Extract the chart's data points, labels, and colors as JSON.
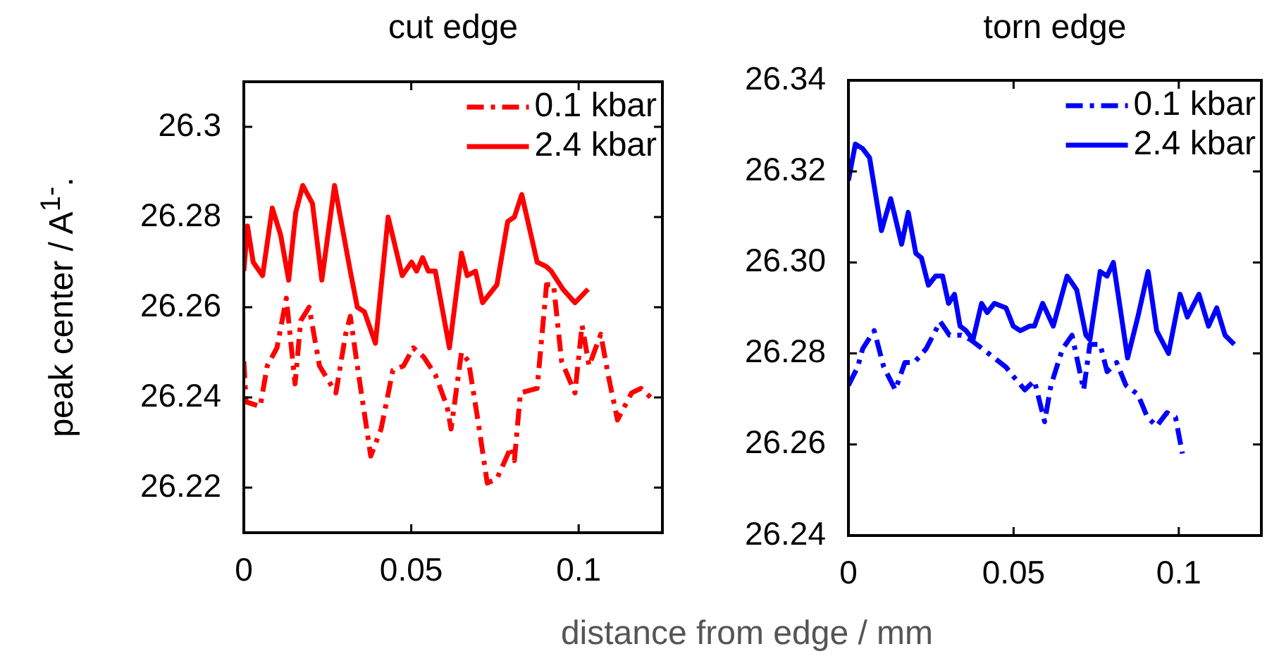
{
  "chart_data": [
    {
      "type": "line",
      "title": "cut edge",
      "xlabel": "distance from edge / mm",
      "ylabel": "peak center / A$^{1-}$.",
      "xlim": [
        0,
        0.125
      ],
      "xticks": [
        0,
        0.05,
        0.1
      ],
      "ylim": [
        26.21,
        26.31
      ],
      "yticks": [
        26.22,
        26.24,
        26.26,
        26.28,
        26.3
      ],
      "grid": false,
      "legend": "top right",
      "marker": "none",
      "series": [
        {
          "name": "0.1 kbar",
          "color": "#ff0000",
          "line_style": "dashed",
          "x": [
            0,
            0.0007,
            0.0049,
            0.007,
            0.0099,
            0.0127,
            0.0153,
            0.017,
            0.0195,
            0.0226,
            0.0275,
            0.0304,
            0.0318,
            0.0339,
            0.0379,
            0.041,
            0.0445,
            0.0477,
            0.0506,
            0.0537,
            0.0572,
            0.0607,
            0.0619,
            0.065,
            0.0671,
            0.0699,
            0.0727,
            0.0756,
            0.0798,
            0.0808,
            0.0826,
            0.0876,
            0.0904,
            0.0925,
            0.0949,
            0.0989,
            0.101,
            0.1031,
            0.1066,
            0.1088,
            0.1116,
            0.1158,
            0.1186,
            0.1215
          ],
          "values": [
            26.248,
            26.239,
            26.238,
            26.247,
            26.251,
            26.262,
            26.243,
            26.257,
            26.26,
            26.247,
            26.241,
            26.254,
            26.258,
            26.247,
            26.227,
            26.233,
            26.246,
            26.247,
            26.251,
            26.249,
            26.245,
            26.238,
            26.233,
            26.25,
            26.248,
            26.235,
            26.221,
            26.222,
            26.229,
            26.226,
            26.241,
            26.242,
            26.265,
            26.265,
            26.248,
            26.241,
            26.256,
            26.247,
            26.254,
            26.245,
            26.235,
            26.241,
            26.242,
            26.24
          ]
        },
        {
          "name": "2.4 kbar",
          "color": "#ff0000",
          "line_style": "solid",
          "x": [
            0,
            0.0011,
            0.0028,
            0.0056,
            0.0085,
            0.011,
            0.0134,
            0.0155,
            0.0176,
            0.0205,
            0.0233,
            0.0271,
            0.0318,
            0.0339,
            0.036,
            0.0393,
            0.0431,
            0.0473,
            0.0501,
            0.0516,
            0.0534,
            0.0551,
            0.0572,
            0.0614,
            0.065,
            0.0667,
            0.0692,
            0.0713,
            0.0756,
            0.0788,
            0.0808,
            0.083,
            0.0876,
            0.0904,
            0.0918,
            0.0953,
            0.0989,
            0.1028
          ],
          "values": [
            26.268,
            26.278,
            26.27,
            26.267,
            26.282,
            26.276,
            26.266,
            26.281,
            26.287,
            26.283,
            26.266,
            26.287,
            26.268,
            26.26,
            26.259,
            26.252,
            26.28,
            26.267,
            26.27,
            26.268,
            26.271,
            26.268,
            26.268,
            26.251,
            26.272,
            26.267,
            26.268,
            26.261,
            26.265,
            26.279,
            26.28,
            26.285,
            26.27,
            26.269,
            26.268,
            26.264,
            26.261,
            26.264
          ]
        }
      ]
    },
    {
      "type": "line",
      "title": "torn edge",
      "xlim": [
        0,
        0.125
      ],
      "xticks": [
        0,
        0.05,
        0.1
      ],
      "ylim": [
        26.24,
        26.34
      ],
      "yticks": [
        26.24,
        26.26,
        26.28,
        {
          "value": 26.3,
          "label": "26.30"
        },
        26.32,
        26.34
      ],
      "grid": false,
      "legend": "top right",
      "marker": "none",
      "series": [
        {
          "name": "0.1 kbar",
          "color": "#0000ff",
          "line_style": "dashed",
          "x": [
            0,
            0.0028,
            0.0043,
            0.0078,
            0.0107,
            0.0142,
            0.0171,
            0.0199,
            0.0235,
            0.0278,
            0.0306,
            0.0342,
            0.037,
            0.0406,
            0.0442,
            0.0477,
            0.0499,
            0.0534,
            0.0563,
            0.0594,
            0.0613,
            0.0648,
            0.0677,
            0.0712,
            0.0731,
            0.0762,
            0.0783,
            0.0812,
            0.084,
            0.0876,
            0.0905,
            0.0933,
            0.0964,
            0.099,
            0.1011
          ],
          "values": [
            26.273,
            26.277,
            26.281,
            26.285,
            26.277,
            26.272,
            26.278,
            26.278,
            26.281,
            26.287,
            26.284,
            26.284,
            26.283,
            26.281,
            26.279,
            26.277,
            26.275,
            26.272,
            26.274,
            26.265,
            26.273,
            26.281,
            26.284,
            26.272,
            26.282,
            26.282,
            26.276,
            26.278,
            26.273,
            26.271,
            26.266,
            26.264,
            26.267,
            26.266,
            26.258
          ]
        },
        {
          "name": "2.4 kbar",
          "color": "#0000ff",
          "line_style": "solid",
          "x": [
            0,
            0.0021,
            0.0043,
            0.0064,
            0.01,
            0.0128,
            0.0161,
            0.0181,
            0.0204,
            0.0221,
            0.0242,
            0.0264,
            0.0285,
            0.0303,
            0.0321,
            0.0338,
            0.0356,
            0.0377,
            0.0403,
            0.042,
            0.0442,
            0.0477,
            0.0499,
            0.052,
            0.0548,
            0.0563,
            0.0588,
            0.062,
            0.0662,
            0.0691,
            0.0719,
            0.0731,
            0.0762,
            0.0783,
            0.0802,
            0.0845,
            0.0876,
            0.0907,
            0.0933,
            0.0969,
            0.1004,
            0.1026,
            0.1061,
            0.109,
            0.1115,
            0.114,
            0.1168
          ],
          "values": [
            26.318,
            26.326,
            26.325,
            26.323,
            26.307,
            26.314,
            26.304,
            26.311,
            26.302,
            26.301,
            26.295,
            26.297,
            26.297,
            26.291,
            26.293,
            26.286,
            26.285,
            26.283,
            26.291,
            26.289,
            26.291,
            26.29,
            26.286,
            26.285,
            26.286,
            26.286,
            26.291,
            26.286,
            26.297,
            26.294,
            26.284,
            26.283,
            26.298,
            26.297,
            26.3,
            26.279,
            26.288,
            26.298,
            26.285,
            26.28,
            26.293,
            26.288,
            26.293,
            26.286,
            26.29,
            26.284,
            26.282
          ]
        }
      ]
    }
  ]
}
